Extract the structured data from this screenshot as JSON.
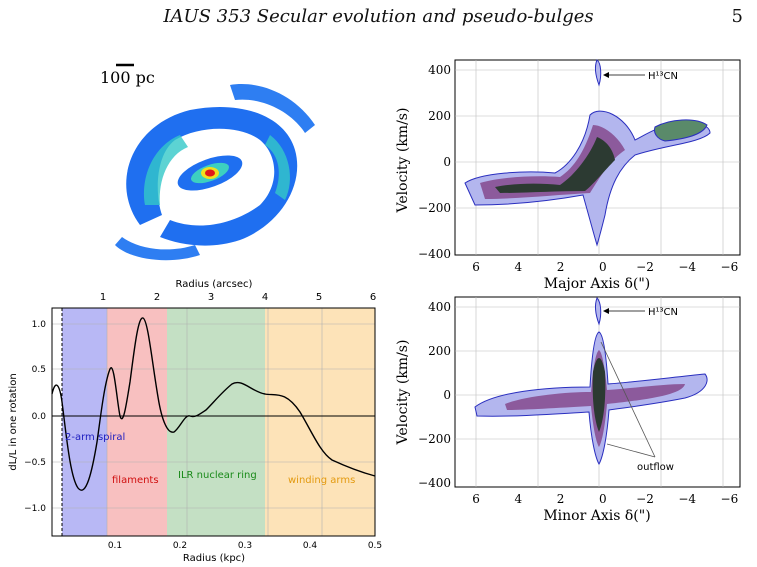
{
  "header": {
    "title": "IAUS 353  Secular evolution and pseudo-bulges",
    "page_number": "5"
  },
  "galaxy_map": {
    "scale_bar_label": "100 pc"
  },
  "rotation_plot": {
    "top_axis_label": "Radius (arcsec)",
    "bottom_axis_label": "Radius (kpc)",
    "y_axis_label": "dL/L in one rotation",
    "top_ticks": [
      "1",
      "2",
      "3",
      "4",
      "5",
      "6"
    ],
    "bottom_ticks": [
      "0.1",
      "0.2",
      "0.3",
      "0.4",
      "0.5"
    ],
    "y_ticks": [
      "1.0",
      "0.5",
      "0.0",
      "−0.5",
      "−1.0"
    ],
    "regions": [
      {
        "label": "2-arm spiral",
        "color": "#b8b8f5",
        "text_color": "#2020c0"
      },
      {
        "label": "filaments",
        "color": "#f8c0c0",
        "text_color": "#d01010"
      },
      {
        "label": "ILR nuclear ring",
        "color": "#c4e0c4",
        "text_color": "#1a8a1a"
      },
      {
        "label": "winding arms",
        "color": "#fde3b8",
        "text_color": "#e39a10"
      }
    ]
  },
  "pv_major": {
    "y_label": "Velocity (km/s)",
    "x_label": "Major Axis  δ(\")",
    "annotation": "H¹³CN",
    "x_ticks": [
      "6",
      "4",
      "2",
      "0",
      "−2",
      "−4",
      "−6"
    ],
    "y_ticks": [
      "400",
      "200",
      "0",
      "−200",
      "−400"
    ]
  },
  "pv_minor": {
    "y_label": "Velocity (km/s)",
    "x_label": "Minor Axis  δ(\")",
    "annotation": "H¹³CN",
    "outflow_label": "outflow",
    "x_ticks": [
      "6",
      "4",
      "2",
      "0",
      "−2",
      "−4",
      "−6"
    ],
    "y_ticks": [
      "400",
      "200",
      "0",
      "−200",
      "−400"
    ]
  }
}
